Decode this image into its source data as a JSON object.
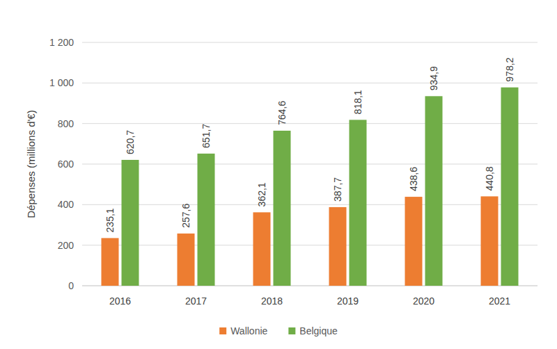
{
  "chart_data": {
    "type": "bar",
    "y_label": "Dépenses (millions d'€)",
    "categories": [
      "2016",
      "2017",
      "2018",
      "2019",
      "2020",
      "2021"
    ],
    "series": [
      {
        "name": "Wallonie",
        "color": "#ed7d31",
        "values": [
          235.1,
          257.6,
          362.1,
          387.7,
          438.6,
          440.8
        ],
        "value_labels": [
          "235,1",
          "257,6",
          "362,1",
          "387,7",
          "438,6",
          "440,8"
        ]
      },
      {
        "name": "Belgique",
        "color": "#70ad47",
        "values": [
          620.7,
          651.7,
          764.6,
          818.1,
          934.9,
          978.2
        ],
        "value_labels": [
          "620,7",
          "651,7",
          "764,6",
          "818,1",
          "934,9",
          "978,2"
        ]
      }
    ],
    "ylim": [
      0,
      1200
    ],
    "yticks": [
      0,
      200,
      400,
      600,
      800,
      {
        "value": 1000,
        "label": "1 000"
      },
      {
        "value": 1200,
        "label": "1 200"
      }
    ],
    "grid": true,
    "data_labels": true,
    "legend": "bottom"
  }
}
